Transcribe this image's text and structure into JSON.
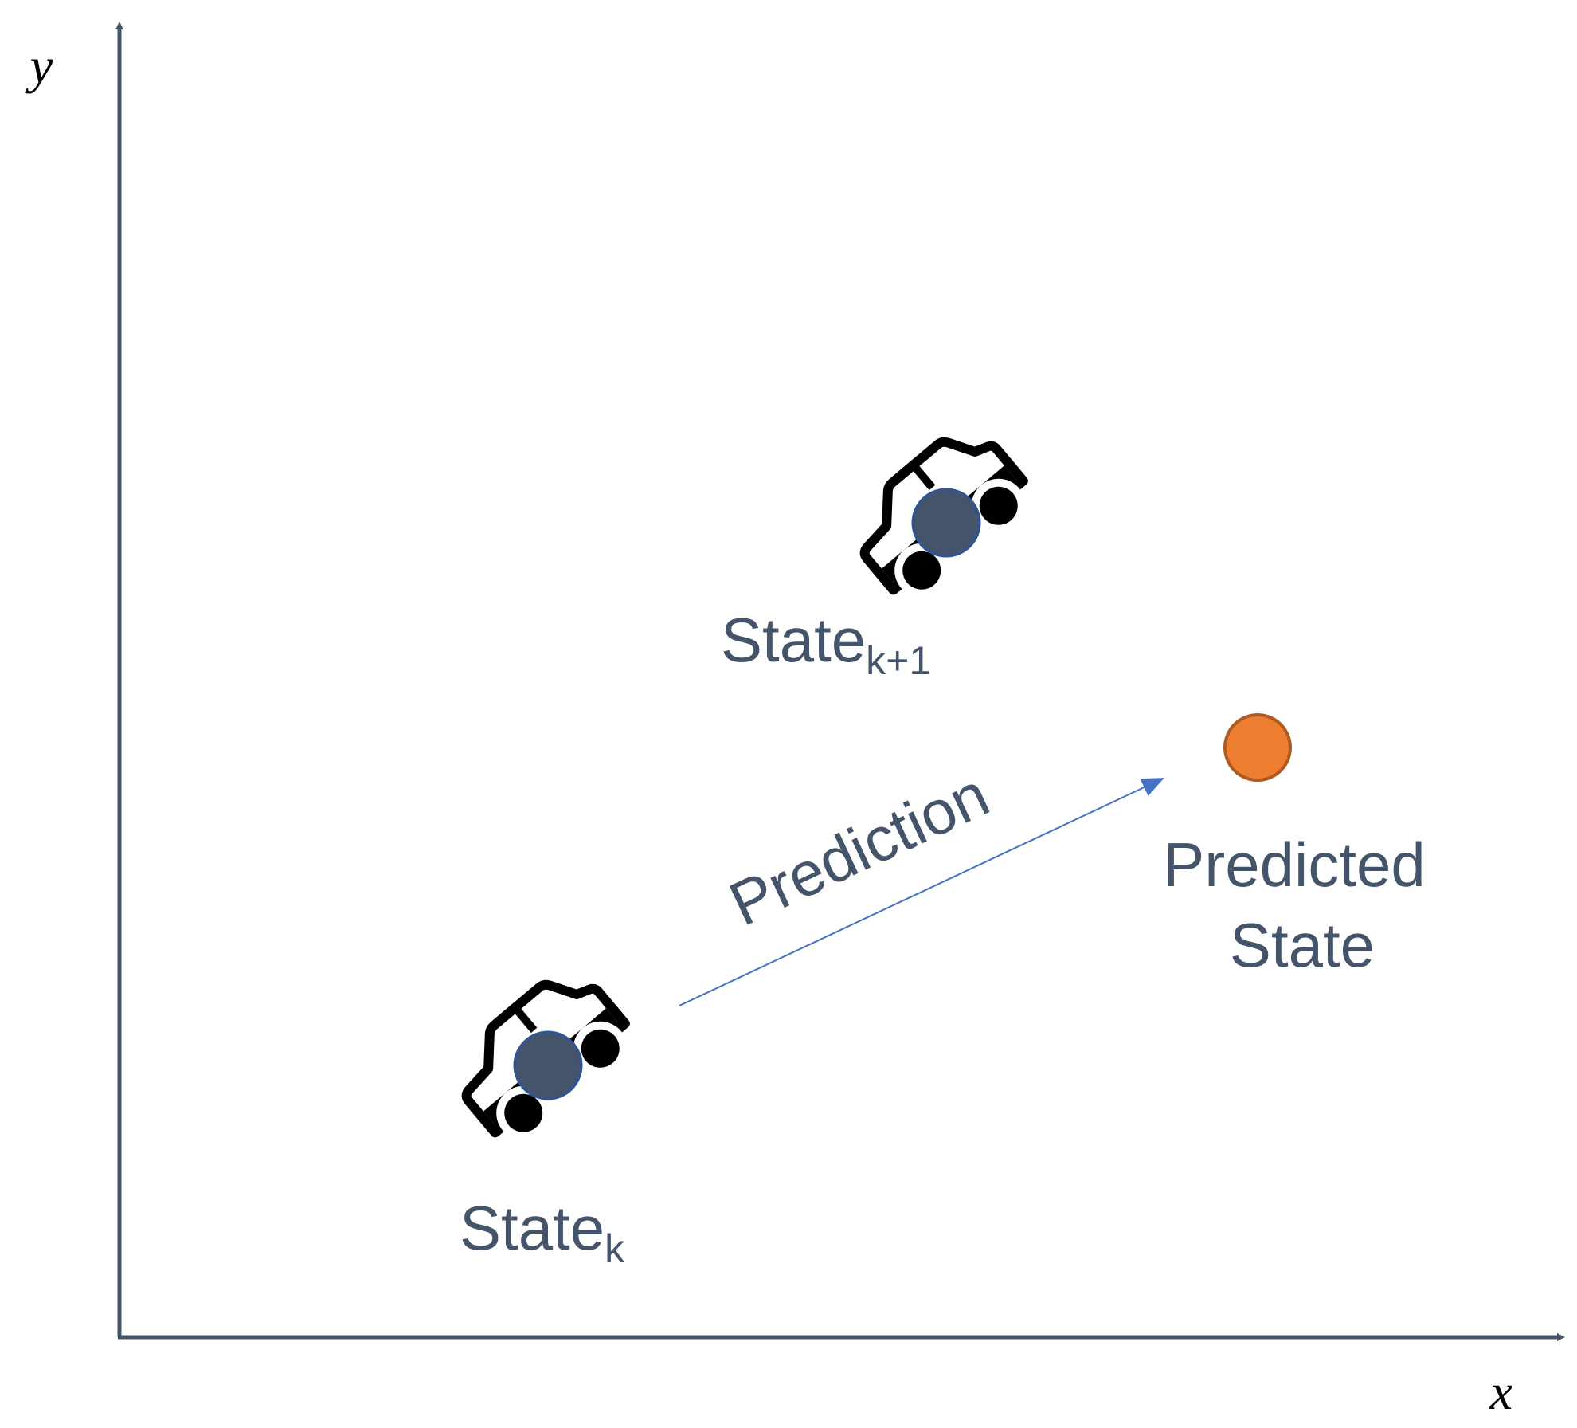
{
  "axes": {
    "y_label": "y",
    "x_label": "x"
  },
  "nodes": [
    {
      "label": "State",
      "subscript": "k"
    },
    {
      "label": "State",
      "subscript": "k+1"
    },
    {
      "lines": [
        "Predicted",
        "State"
      ]
    }
  ],
  "edge": {
    "label": "Prediction"
  }
}
